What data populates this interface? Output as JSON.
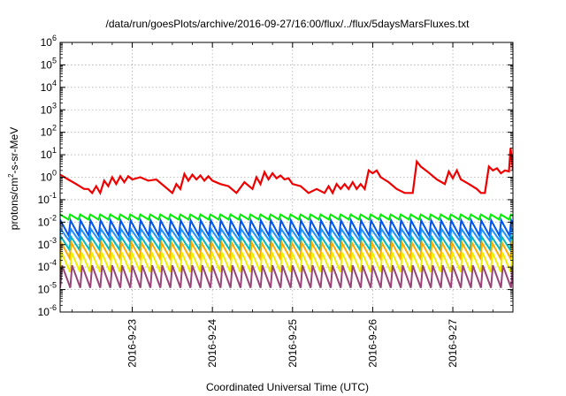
{
  "chart_data": {
    "type": "line",
    "title": "/data/run/goesPlots/archive/2016-09-27/16:00/flux/../flux/5daysMarsFluxes.txt",
    "xlabel": "Coordinated Universal Time (UTC)",
    "ylabel": {
      "prefix": "protons/cm",
      "superscript": "2",
      "suffix": "-s-sr-MeV"
    },
    "x_range_days": [
      22.1,
      27.75
    ],
    "x_ticks": [
      {
        "day": 23,
        "label": "2016-9-23"
      },
      {
        "day": 24,
        "label": "2016-9-24"
      },
      {
        "day": 25,
        "label": "2016-9-25"
      },
      {
        "day": 26,
        "label": "2016-9-26"
      },
      {
        "day": 27,
        "label": "2016-9-27"
      }
    ],
    "y_scale": "log",
    "y_range": [
      1e-06,
      1000000.0
    ],
    "y_ticks": [
      {
        "value": 1e-06,
        "base": "10",
        "exp": "-6"
      },
      {
        "value": 1e-05,
        "base": "10",
        "exp": "-5"
      },
      {
        "value": 0.0001,
        "base": "10",
        "exp": "-4"
      },
      {
        "value": 0.001,
        "base": "10",
        "exp": "-3"
      },
      {
        "value": 0.01,
        "base": "10",
        "exp": "-2"
      },
      {
        "value": 0.1,
        "base": "10",
        "exp": "-1"
      },
      {
        "value": 1,
        "base": "10",
        "exp": "0"
      },
      {
        "value": 10,
        "base": "10",
        "exp": "1"
      },
      {
        "value": 100,
        "base": "10",
        "exp": "2"
      },
      {
        "value": 1000,
        "base": "10",
        "exp": "3"
      },
      {
        "value": 10000,
        "base": "10",
        "exp": "4"
      },
      {
        "value": 100000,
        "base": "10",
        "exp": "5"
      },
      {
        "value": 1000000,
        "base": "10",
        "exp": "6"
      }
    ],
    "grid": true,
    "series": [
      {
        "color": "#ee0000",
        "x": [
          22.1,
          22.2,
          22.3,
          22.4,
          22.45,
          22.5,
          22.55,
          22.6,
          22.65,
          22.7,
          22.75,
          22.8,
          22.85,
          22.9,
          22.95,
          23.0,
          23.1,
          23.2,
          23.3,
          23.4,
          23.5,
          23.55,
          23.6,
          23.65,
          23.7,
          23.75,
          23.8,
          23.85,
          23.9,
          23.95,
          24.0,
          24.1,
          24.2,
          24.3,
          24.4,
          24.5,
          24.55,
          24.6,
          24.65,
          24.7,
          24.75,
          24.8,
          24.85,
          24.9,
          24.95,
          25.0,
          25.1,
          25.2,
          25.3,
          25.4,
          25.45,
          25.5,
          25.55,
          25.6,
          25.65,
          25.7,
          25.75,
          25.8,
          25.85,
          25.9,
          25.95,
          26.0,
          26.05,
          26.1,
          26.2,
          26.3,
          26.4,
          26.5,
          26.55,
          26.6,
          26.7,
          26.8,
          26.9,
          26.95,
          27.0,
          27.05,
          27.1,
          27.2,
          27.3,
          27.35,
          27.4,
          27.45,
          27.5,
          27.55,
          27.6,
          27.65,
          27.7,
          27.72,
          27.75
        ],
        "y": [
          1.3,
          0.8,
          0.5,
          0.3,
          0.3,
          0.2,
          0.4,
          0.2,
          0.7,
          0.4,
          1.0,
          0.5,
          1.1,
          0.6,
          1.1,
          0.8,
          1.0,
          0.7,
          0.8,
          0.4,
          0.2,
          0.5,
          0.3,
          1.4,
          0.7,
          1.3,
          0.8,
          1.2,
          0.7,
          1.1,
          0.7,
          0.5,
          0.4,
          0.2,
          0.6,
          0.3,
          1.0,
          0.5,
          1.7,
          0.8,
          1.5,
          0.9,
          1.2,
          0.8,
          0.9,
          0.5,
          0.4,
          0.2,
          0.3,
          0.2,
          0.4,
          0.2,
          0.5,
          0.3,
          0.5,
          0.3,
          0.6,
          0.3,
          0.5,
          0.3,
          2.0,
          1.5,
          2.0,
          1.0,
          0.6,
          0.3,
          0.2,
          0.2,
          5.0,
          3.0,
          1.6,
          0.8,
          0.5,
          1.8,
          0.9,
          2.0,
          0.8,
          0.5,
          0.3,
          0.2,
          0.2,
          3.0,
          2.0,
          2.5,
          1.5,
          2.0,
          1.8,
          20.0,
          2.0
        ]
      },
      {
        "color": "#00ee00",
        "high": 0.022,
        "low": 0.013
      },
      {
        "color": "#0055ee",
        "high": 0.012,
        "low": 0.0025
      },
      {
        "color": "#1e90ff",
        "high": 0.005,
        "low": 0.0015
      },
      {
        "color": "#00bbbb",
        "high": 0.0022,
        "low": 0.0006
      },
      {
        "color": "#ffaa00",
        "high": 0.0012,
        "low": 0.00025
      },
      {
        "color": "#eeee00",
        "high": 0.00045,
        "low": 6e-05
      },
      {
        "color": "#994477",
        "high": 0.00012,
        "low": 1.2e-05
      }
    ],
    "sawtooth_cycles_per_day": 8
  }
}
